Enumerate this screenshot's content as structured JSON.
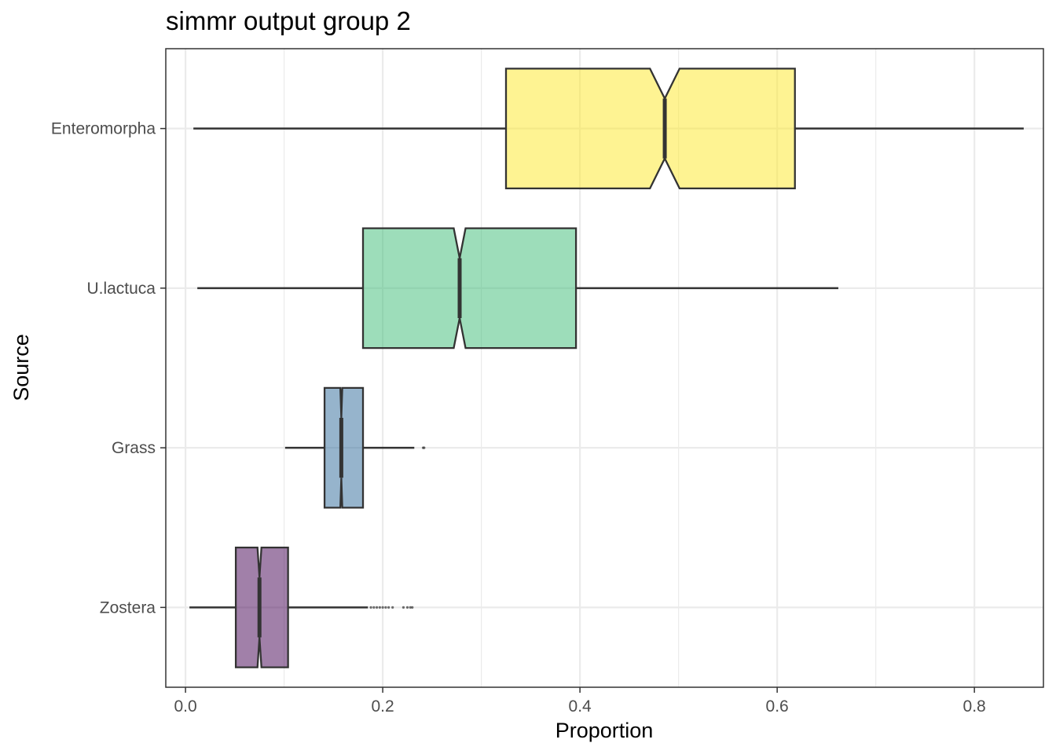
{
  "title": "simmr output group 2",
  "chart_data": {
    "type": "boxplot",
    "orientation": "horizontal",
    "title": "simmr output group 2",
    "xlabel": "Proportion",
    "ylabel": "Source",
    "xlim": [
      -0.02,
      0.87
    ],
    "xticks": [
      0.0,
      0.2,
      0.4,
      0.6,
      0.8
    ],
    "xtick_labels": [
      "0.0",
      "0.2",
      "0.4",
      "0.6",
      "0.8"
    ],
    "grid": true,
    "notched": true,
    "categories": [
      "Enteromorpha",
      "U.lactuca",
      "Grass",
      "Zostera"
    ],
    "boxes": [
      {
        "name": "Enteromorpha",
        "color": "#FDE725",
        "whisker_low": 0.008,
        "q1": 0.325,
        "median": 0.486,
        "q3": 0.618,
        "whisker_high": 0.85,
        "notch": 0.015,
        "outliers": []
      },
      {
        "name": "U.lactuca",
        "color": "#3CBB75",
        "whisker_low": 0.012,
        "q1": 0.18,
        "median": 0.278,
        "q3": 0.396,
        "whisker_high": 0.662,
        "notch": 0.006,
        "outliers": []
      },
      {
        "name": "Grass",
        "color": "#2D6A99",
        "whisker_low": 0.101,
        "q1": 0.141,
        "median": 0.158,
        "q3": 0.18,
        "whisker_high": 0.232,
        "notch": 0.001,
        "outliers": [
          0.241,
          0.242
        ]
      },
      {
        "name": "Zostera",
        "color": "#440154",
        "whisker_low": 0.004,
        "q1": 0.051,
        "median": 0.075,
        "q3": 0.104,
        "whisker_high": 0.185,
        "notch": 0.002,
        "outliers": [
          0.188,
          0.191,
          0.194,
          0.197,
          0.2,
          0.203,
          0.206,
          0.21,
          0.221,
          0.225,
          0.228,
          0.23
        ]
      }
    ]
  }
}
